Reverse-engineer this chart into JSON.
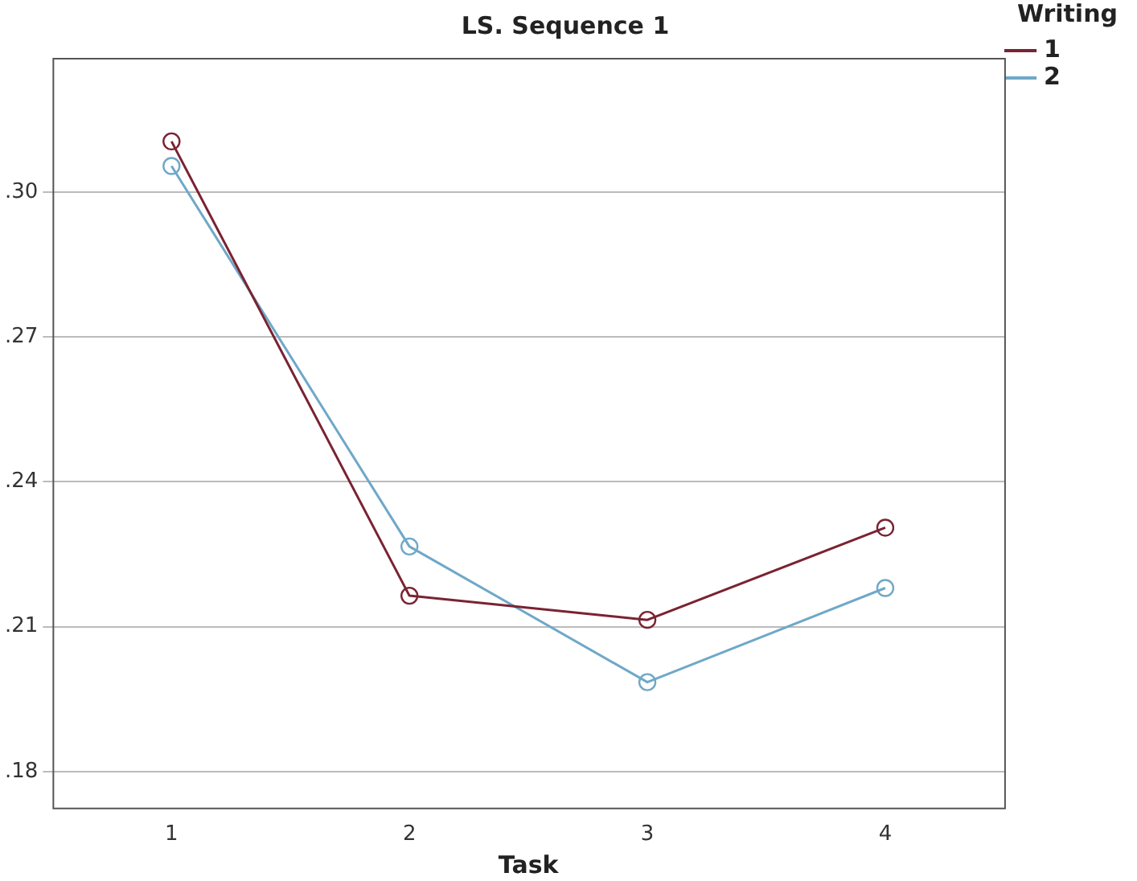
{
  "chart_data": {
    "type": "line",
    "title": "LS. Sequence 1",
    "xlabel": "Task",
    "legend_title": "Writing",
    "categories": [
      "1",
      "2",
      "3",
      "4"
    ],
    "series": [
      {
        "name": "1",
        "color": "#7a2332",
        "values": [
          0.3105,
          0.2164,
          0.2114,
          0.2305
        ]
      },
      {
        "name": "2",
        "color": "#6fa8c8",
        "values": [
          0.3054,
          0.2266,
          0.1985,
          0.218
        ]
      }
    ],
    "ylim": [
      0.1725,
      0.3278
    ],
    "yticks": [
      {
        "value": 0.18,
        "label": ".18"
      },
      {
        "value": 0.21,
        "label": ".21"
      },
      {
        "value": 0.24,
        "label": ".24"
      },
      {
        "value": 0.27,
        "label": ".27"
      },
      {
        "value": 0.3,
        "label": ".30"
      }
    ],
    "grid": "y",
    "legend": "top right",
    "marker": "circle",
    "line_style": "solid"
  }
}
